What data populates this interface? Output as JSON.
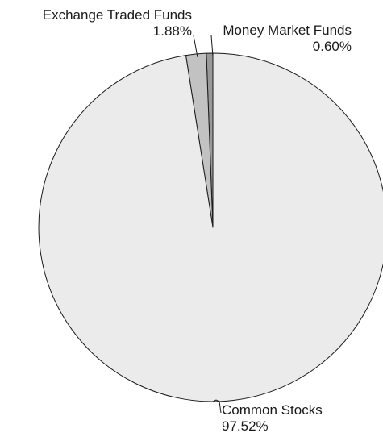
{
  "chart_data": {
    "type": "pie",
    "title": "",
    "start_angle_deg": 0,
    "direction": "counterclockwise",
    "colors": {
      "common_stocks": "#ebebeb",
      "exchange_traded_funds": "#c2c2c2",
      "money_market_funds": "#999999",
      "outline": "#1a1a1a"
    },
    "slices": [
      {
        "label": "Money Market Funds",
        "value_label": "0.60%",
        "value": 0.6,
        "color_key": "money_market_funds",
        "label_side": "right"
      },
      {
        "label": "Exchange Traded Funds",
        "value_label": "1.88%",
        "value": 1.88,
        "color_key": "exchange_traded_funds",
        "label_side": "left"
      },
      {
        "label": "Common Stocks",
        "value_label": "97.52%",
        "value": 97.52,
        "color_key": "common_stocks",
        "label_side": "left"
      }
    ]
  }
}
